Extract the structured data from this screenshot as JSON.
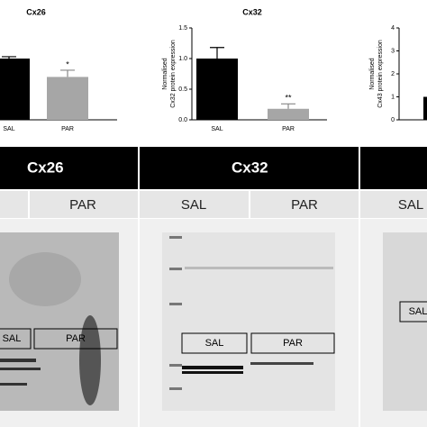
{
  "chart_data": [
    {
      "type": "bar",
      "title": "Cx26",
      "categories": [
        "SAL",
        "PAR"
      ],
      "values": [
        1.0,
        0.7
      ],
      "errors": [
        0.03,
        0.11
      ],
      "annotations": [
        null,
        "*"
      ],
      "colors": [
        "#000000",
        "#a6a6a6"
      ],
      "ylim": [
        0,
        1.5
      ]
    },
    {
      "type": "bar",
      "title": "Cx32",
      "y_label": [
        "Normalised",
        "Cx32 protein expression"
      ],
      "categories": [
        "SAL",
        "PAR"
      ],
      "values": [
        1.0,
        0.18
      ],
      "errors": [
        0.18,
        0.08
      ],
      "annotations": [
        null,
        "**"
      ],
      "colors": [
        "#000000",
        "#a6a6a6"
      ],
      "ylim": [
        0,
        1.5
      ],
      "yticks": [
        {
          "value": 0,
          "label": "0.0"
        },
        {
          "value": 0.5,
          "label": "0.5"
        },
        {
          "value": 1,
          "label": "1.0"
        },
        {
          "value": 1.5,
          "label": "1.5"
        }
      ]
    },
    {
      "type": "bar",
      "y_label": [
        "Normalised",
        "Cx43 protein expression"
      ],
      "categories": [
        null
      ],
      "values": [
        1.0
      ],
      "colors": [
        "#000000"
      ],
      "ylim": [
        0,
        4
      ],
      "yticks": [
        0,
        1,
        2,
        3,
        4
      ]
    }
  ],
  "blots": [
    {
      "header": "Cx26",
      "lanes": [
        "PAR"
      ],
      "boxes": [
        "SAL",
        "PAR"
      ]
    },
    {
      "header": "Cx32",
      "lanes": [
        "SAL",
        "PAR"
      ],
      "boxes": [
        "SAL",
        "PAR"
      ]
    },
    {
      "lanes": [
        "SAL"
      ],
      "boxes": [
        "SAL"
      ]
    }
  ]
}
